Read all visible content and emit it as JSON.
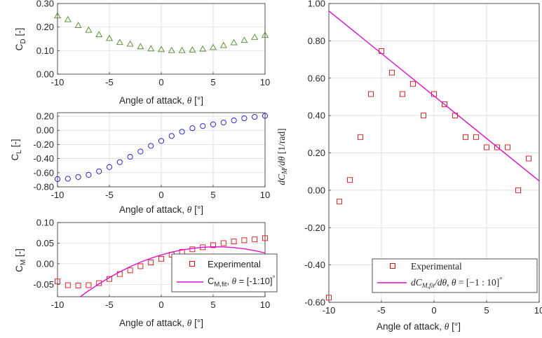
{
  "chart_data": [
    {
      "id": "cd",
      "type": "scatter",
      "xlabel_text": "Angle of attack, ",
      "xlabel_symbol": "θ",
      "xlabel_unit": " [°]",
      "ylabel_main": "C",
      "ylabel_sub": "D",
      "ylabel_unit": " [-]",
      "xlim": [
        -10,
        10
      ],
      "ylim": [
        0,
        0.3
      ],
      "xticks": [
        -10,
        -5,
        0,
        5,
        10
      ],
      "xtick_labels": [
        "-10",
        "-5",
        "0",
        "5",
        "10"
      ],
      "yticks": [
        0,
        0.1,
        0.2,
        0.3
      ],
      "ytick_labels": [
        "0.00",
        "0.10",
        "0.20",
        "0.30"
      ],
      "grid": true,
      "series": [
        {
          "marker": "triangle",
          "color": "#4d8a22",
          "x": [
            -10,
            -9,
            -8,
            -7,
            -6,
            -5,
            -4,
            -3,
            -2,
            -1,
            0,
            1,
            2,
            3,
            4,
            5,
            6,
            7,
            8,
            9,
            10
          ],
          "y": [
            0.248,
            0.232,
            0.207,
            0.187,
            0.168,
            0.152,
            0.135,
            0.128,
            0.117,
            0.108,
            0.105,
            0.101,
            0.101,
            0.103,
            0.107,
            0.114,
            0.122,
            0.134,
            0.144,
            0.157,
            0.166
          ]
        }
      ]
    },
    {
      "id": "cl",
      "type": "scatter",
      "xlabel_text": "Angle of attack, ",
      "xlabel_symbol": "θ",
      "xlabel_unit": " [°]",
      "ylabel_main": "C",
      "ylabel_sub": "L",
      "ylabel_unit": " [-]",
      "xlim": [
        -10,
        10
      ],
      "ylim": [
        -0.8,
        0.25
      ],
      "xticks": [
        -10,
        -5,
        0,
        5,
        10
      ],
      "xtick_labels": [
        "-10",
        "-5",
        "0",
        "5",
        "10"
      ],
      "yticks": [
        -0.8,
        -0.6,
        -0.4,
        -0.2,
        0,
        0.2
      ],
      "ytick_labels": [
        "-0.80",
        "-0.60",
        "-0.40",
        "-0.20",
        "0.00",
        "0.20"
      ],
      "grid": true,
      "series": [
        {
          "marker": "circle",
          "color": "#1010e0",
          "x": [
            -10,
            -9,
            -8,
            -7,
            -6,
            -5,
            -4,
            -3,
            -2,
            -1,
            0,
            1,
            2,
            3,
            4,
            5,
            6,
            7,
            8,
            9,
            10
          ],
          "y": [
            -0.69,
            -0.685,
            -0.66,
            -0.63,
            -0.58,
            -0.52,
            -0.45,
            -0.375,
            -0.3,
            -0.22,
            -0.15,
            -0.08,
            -0.02,
            0.03,
            0.06,
            0.085,
            0.11,
            0.14,
            0.17,
            0.19,
            0.205
          ]
        }
      ]
    },
    {
      "id": "cm",
      "type": "scatter",
      "xlabel_text": "Angle of attack, ",
      "xlabel_symbol": "θ",
      "xlabel_unit": " [°]",
      "ylabel_main": "C",
      "ylabel_sub": "M",
      "ylabel_unit": " [-]",
      "xlim": [
        -10,
        10
      ],
      "ylim": [
        -0.08,
        0.1
      ],
      "xticks": [
        -10,
        -5,
        0,
        5,
        10
      ],
      "xtick_labels": [
        "-10",
        "-5",
        "0",
        "5",
        "10"
      ],
      "yticks": [
        -0.05,
        0,
        0.05,
        0.1
      ],
      "ytick_labels": [
        "-0.05",
        "0.00",
        "0.05",
        "0.10"
      ],
      "grid": true,
      "legend_position": "bottom-right",
      "series": [
        {
          "name": "Experimental",
          "marker": "square",
          "color": "#e01010",
          "x": [
            -10,
            -9,
            -8,
            -7,
            -6,
            -5,
            -4,
            -3,
            -2,
            -1,
            0,
            1,
            2,
            3,
            4,
            5,
            6,
            7,
            8,
            9,
            10
          ],
          "y": [
            -0.043,
            -0.052,
            -0.053,
            -0.052,
            -0.047,
            -0.037,
            -0.025,
            -0.016,
            -0.006,
            0.003,
            0.012,
            0.022,
            0.029,
            0.035,
            0.04,
            0.045,
            0.05,
            0.054,
            0.057,
            0.059,
            0.062
          ]
        },
        {
          "name": "C_M,fit, θ = [-1:10]°",
          "legend_main": "C",
          "legend_sub": "M,fit",
          "legend_rest": ", ",
          "legend_theta": "θ",
          "legend_range": " = [-1:10]",
          "legend_deg": "°",
          "marker": "line",
          "color": "#e010d0",
          "x": [
            -7.8,
            -7,
            -6,
            -5,
            -4,
            -3,
            -2,
            -1,
            0,
            1,
            2,
            3,
            4,
            5,
            6,
            7,
            8,
            9,
            10
          ],
          "y": [
            -0.08,
            -0.0655,
            -0.0488,
            -0.0335,
            -0.0197,
            -0.0072,
            0.0038,
            0.0133,
            0.0214,
            0.0281,
            0.0334,
            0.0373,
            0.0398,
            0.041,
            0.0408,
            0.0392,
            0.0362,
            0.0319,
            0.0262
          ]
        }
      ]
    },
    {
      "id": "dcm",
      "type": "scatter",
      "xlabel_text": "Angle of attack, ",
      "xlabel_symbol": "θ",
      "xlabel_unit": " [°]",
      "ylabel": "dC_M/dθ [1/rad]",
      "ylabel_d1": "dC",
      "ylabel_sub": "M",
      "ylabel_d2": "/dθ ",
      "ylabel_unit": "[1/rad]",
      "xlim": [
        -10,
        10
      ],
      "ylim": [
        -0.6,
        1.0
      ],
      "xticks": [
        -10,
        -5,
        0,
        5,
        10
      ],
      "xtick_labels": [
        "-10",
        "-5",
        "0",
        "5",
        "10"
      ],
      "yticks": [
        -0.6,
        -0.4,
        -0.2,
        0,
        0.2,
        0.4,
        0.6,
        0.8,
        1.0
      ],
      "ytick_labels": [
        "-0.60",
        "-0.40",
        "-0.20",
        "0.00",
        "0.20",
        "0.40",
        "0.60",
        "0.80",
        "1.00"
      ],
      "grid": true,
      "legend_position": "bottom-right",
      "series": [
        {
          "name": "Experimental",
          "marker": "square",
          "color": "#e01010",
          "x": [
            -10,
            -9,
            -8,
            -7,
            -6,
            -5,
            -4,
            -3,
            -2,
            -1,
            0,
            1,
            2,
            3,
            4,
            5,
            6,
            7,
            8,
            9
          ],
          "y": [
            -0.575,
            -0.06,
            0.055,
            0.285,
            0.515,
            0.745,
            0.63,
            0.515,
            0.57,
            0.4,
            0.515,
            0.46,
            0.4,
            0.285,
            0.285,
            0.23,
            0.23,
            0.23,
            0.0,
            0.17
          ]
        },
        {
          "name": "dC_M,fit/dθ, θ = [-1:10]°",
          "legend_d1": "dC",
          "legend_sub": "M,fit",
          "legend_d2": "/dθ, ",
          "legend_theta": "θ",
          "legend_range": " = [−1 : 10]",
          "legend_deg": "°",
          "marker": "line",
          "color": "#e010d0",
          "x": [
            -10,
            10
          ],
          "y": [
            0.96,
            0.05
          ]
        }
      ]
    }
  ]
}
